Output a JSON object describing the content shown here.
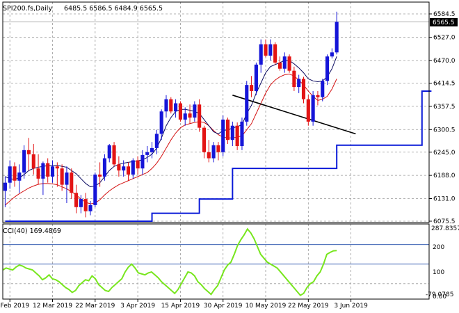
{
  "header": {
    "symbol_label": "SPI200.fs,Daily",
    "ohlc": "6485.5 6586.5 6484.9 6565.5"
  },
  "indicator": {
    "label": "CCI(40) 169.4869",
    "axis_top": "287.8357",
    "axis_bottom": "-79.0785",
    "levels": [
      "200",
      "100",
      "0.00"
    ]
  },
  "current_price_label": "6565.5",
  "colors": {
    "bull": "#1515d8",
    "bear": "#e31414",
    "ma_fast": "#0a0a60",
    "ma_slow": "#d41212",
    "support_line": "#0a1ad8",
    "cci_line": "#78e61e",
    "level_line": "#1f4aa8",
    "grid": "#9a9a9a"
  },
  "chart_data": [
    {
      "type": "candlestick",
      "title": "SPI200.fs,Daily",
      "ylim": [
        6075.5,
        6584.5
      ],
      "y_ticks": [
        "6584.5",
        "6527.0",
        "6470.0",
        "6414.5",
        "6357.5",
        "6300.5",
        "6245.0",
        "6188.0",
        "6131.0",
        "6075.5"
      ],
      "x_ticks": [
        "28 Feb 2019",
        "12 Mar 2019",
        "22 Mar 2019",
        "3 Apr 2019",
        "15 Apr 2019",
        "30 Apr 2019",
        "10 May 2019",
        "22 May 2019",
        "3 Jun 2019"
      ],
      "x_tick_index": [
        1,
        10,
        19,
        28,
        37,
        46,
        55,
        64,
        73
      ],
      "candles": [
        [
          6150,
          6185,
          6110,
          6170
        ],
        [
          6170,
          6225,
          6155,
          6210
        ],
        [
          6210,
          6220,
          6160,
          6175
        ],
        [
          6175,
          6215,
          6145,
          6195
        ],
        [
          6195,
          6262,
          6180,
          6250
        ],
        [
          6250,
          6280,
          6200,
          6240
        ],
        [
          6240,
          6265,
          6190,
          6205
        ],
        [
          6205,
          6240,
          6165,
          6180
        ],
        [
          6180,
          6222,
          6140,
          6218
        ],
        [
          6218,
          6230,
          6170,
          6185
        ],
        [
          6185,
          6225,
          6170,
          6210
        ],
        [
          6210,
          6220,
          6160,
          6205
        ],
        [
          6205,
          6215,
          6150,
          6165
        ],
        [
          6165,
          6210,
          6120,
          6195
        ],
        [
          6195,
          6205,
          6130,
          6145
        ],
        [
          6145,
          6165,
          6095,
          6110
        ],
        [
          6110,
          6140,
          6095,
          6130
        ],
        [
          6130,
          6145,
          6085,
          6100
        ],
        [
          6100,
          6125,
          6090,
          6115
        ],
        [
          6115,
          6195,
          6110,
          6190
        ],
        [
          6190,
          6220,
          6160,
          6185
        ],
        [
          6185,
          6240,
          6175,
          6230
        ],
        [
          6230,
          6265,
          6220,
          6262
        ],
        [
          6262,
          6270,
          6210,
          6215
        ],
        [
          6215,
          6235,
          6185,
          6200
        ],
        [
          6200,
          6225,
          6185,
          6210
        ],
        [
          6210,
          6220,
          6175,
          6190
        ],
        [
          6190,
          6230,
          6180,
          6225
        ],
        [
          6225,
          6235,
          6190,
          6205
        ],
        [
          6205,
          6250,
          6190,
          6238
        ],
        [
          6238,
          6260,
          6220,
          6245
        ],
        [
          6245,
          6270,
          6230,
          6255
        ],
        [
          6255,
          6300,
          6240,
          6290
        ],
        [
          6290,
          6350,
          6275,
          6345
        ],
        [
          6345,
          6385,
          6330,
          6375
        ],
        [
          6375,
          6380,
          6340,
          6345
        ],
        [
          6345,
          6375,
          6330,
          6365
        ],
        [
          6365,
          6370,
          6320,
          6325
        ],
        [
          6325,
          6355,
          6310,
          6340
        ],
        [
          6340,
          6362,
          6315,
          6330
        ],
        [
          6330,
          6370,
          6320,
          6362
        ],
        [
          6362,
          6375,
          6295,
          6305
        ],
        [
          6305,
          6310,
          6230,
          6245
        ],
        [
          6245,
          6275,
          6220,
          6230
        ],
        [
          6230,
          6270,
          6220,
          6262
        ],
        [
          6262,
          6270,
          6225,
          6245
        ],
        [
          6245,
          6335,
          6235,
          6325
        ],
        [
          6325,
          6330,
          6265,
          6275
        ],
        [
          6275,
          6320,
          6260,
          6310
        ],
        [
          6310,
          6318,
          6250,
          6260
        ],
        [
          6260,
          6330,
          6250,
          6320
        ],
        [
          6320,
          6420,
          6310,
          6410
        ],
        [
          6410,
          6432,
          6380,
          6395
        ],
        [
          6395,
          6465,
          6385,
          6460
        ],
        [
          6460,
          6522,
          6440,
          6510
        ],
        [
          6510,
          6522,
          6478,
          6482
        ],
        [
          6482,
          6522,
          6470,
          6510
        ],
        [
          6510,
          6515,
          6460,
          6465
        ],
        [
          6465,
          6480,
          6445,
          6450
        ],
        [
          6450,
          6490,
          6440,
          6480
        ],
        [
          6480,
          6485,
          6440,
          6445
        ],
        [
          6445,
          6455,
          6395,
          6405
        ],
        [
          6405,
          6435,
          6390,
          6425
        ],
        [
          6425,
          6430,
          6365,
          6375
        ],
        [
          6375,
          6385,
          6310,
          6320
        ],
        [
          6320,
          6395,
          6310,
          6385
        ],
        [
          6385,
          6395,
          6360,
          6380
        ],
        [
          6380,
          6425,
          6370,
          6420
        ],
        [
          6420,
          6485,
          6410,
          6480
        ],
        [
          6480,
          6500,
          6475,
          6490
        ],
        [
          6490,
          6590,
          6485,
          6565
        ]
      ],
      "ma_fast": [
        6185,
        6180,
        6178,
        6182,
        6190,
        6200,
        6205,
        6208,
        6210,
        6212,
        6212,
        6213,
        6210,
        6208,
        6200,
        6192,
        6180,
        6168,
        6160,
        6162,
        6170,
        6185,
        6200,
        6210,
        6215,
        6218,
        6220,
        6222,
        6224,
        6226,
        6232,
        6240,
        6255,
        6280,
        6310,
        6330,
        6345,
        6350,
        6350,
        6348,
        6345,
        6340,
        6325,
        6310,
        6295,
        6290,
        6298,
        6300,
        6304,
        6308,
        6312,
        6340,
        6360,
        6390,
        6415,
        6440,
        6455,
        6460,
        6465,
        6470,
        6470,
        6462,
        6452,
        6440,
        6425,
        6420,
        6418,
        6420,
        6430,
        6450,
        6480
      ],
      "ma_slow": [
        6115,
        6125,
        6135,
        6143,
        6150,
        6157,
        6162,
        6166,
        6168,
        6168,
        6167,
        6165,
        6160,
        6155,
        6148,
        6140,
        6130,
        6122,
        6118,
        6120,
        6128,
        6140,
        6150,
        6158,
        6165,
        6170,
        6175,
        6180,
        6185,
        6190,
        6195,
        6205,
        6218,
        6235,
        6255,
        6275,
        6292,
        6305,
        6312,
        6315,
        6318,
        6320,
        6318,
        6310,
        6298,
        6288,
        6282,
        6280,
        6280,
        6282,
        6285,
        6300,
        6315,
        6340,
        6365,
        6390,
        6410,
        6422,
        6430,
        6435,
        6437,
        6432,
        6422,
        6410,
        6395,
        6382,
        6372,
        6375,
        6382,
        6400,
        6425
      ],
      "support_line": [
        [
          0,
          6075.5
        ],
        [
          31,
          6075.5
        ],
        [
          31,
          6095
        ],
        [
          41,
          6095
        ],
        [
          41,
          6130
        ],
        [
          48,
          6130
        ],
        [
          48,
          6205
        ],
        [
          70,
          6205
        ],
        [
          70,
          6262
        ],
        [
          88,
          6262
        ],
        [
          88,
          6395
        ],
        [
          90,
          6395
        ]
      ],
      "trend_line": [
        [
          48,
          6385
        ],
        [
          74,
          6290
        ]
      ]
    },
    {
      "type": "line",
      "title": "CCI(40) 169.4869",
      "ylim": [
        -79.0785,
        287.8357
      ],
      "levels": [
        200,
        100,
        0
      ],
      "values": [
        70,
        80,
        75,
        70,
        85,
        95,
        90,
        80,
        75,
        70,
        55,
        40,
        20,
        30,
        45,
        25,
        20,
        10,
        -5,
        -20,
        -30,
        -45,
        -35,
        -10,
        5,
        20,
        15,
        40,
        25,
        -5,
        -20,
        -35,
        -40,
        -20,
        -5,
        10,
        25,
        60,
        85,
        100,
        80,
        55,
        50,
        45,
        55,
        60,
        45,
        30,
        10,
        -5,
        -20,
        -35,
        -50,
        -30,
        0,
        30,
        60,
        55,
        40,
        10,
        -5,
        -25,
        -40,
        -55,
        -30,
        -10,
        30,
        70,
        95,
        110,
        150,
        195,
        225,
        250,
        280,
        260,
        230,
        190,
        150,
        130,
        110,
        100,
        90,
        80,
        60,
        40,
        20,
        0,
        -20,
        -40,
        -60,
        -50,
        -20,
        0,
        10,
        40,
        60,
        100,
        150,
        160,
        168,
        169.49
      ]
    }
  ]
}
